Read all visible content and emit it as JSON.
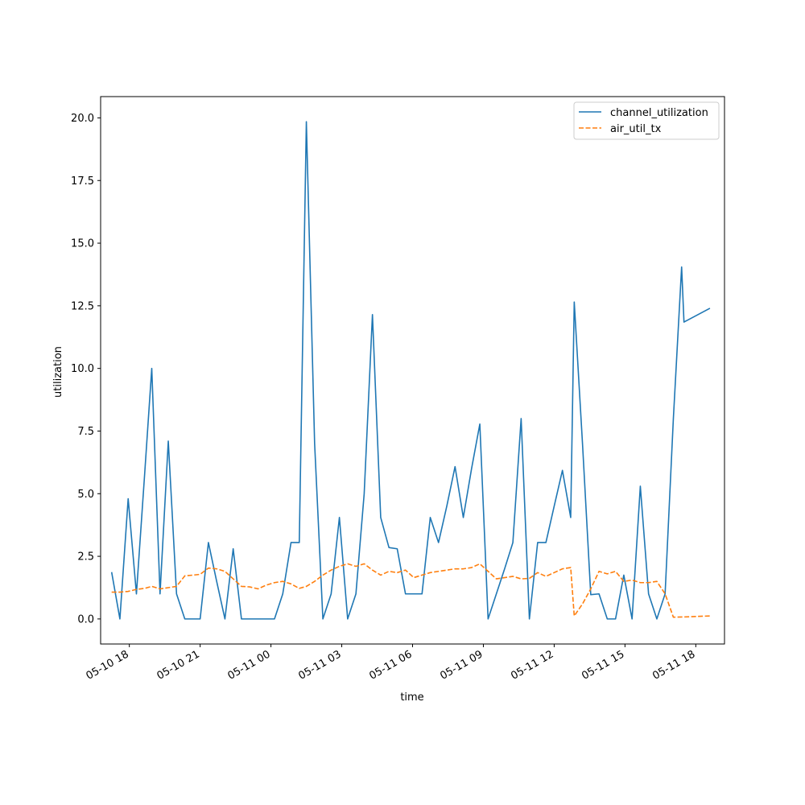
{
  "chart_data": {
    "type": "line",
    "title": "",
    "xlabel": "time",
    "ylabel": "utilization",
    "x_range": [
      "2024-05-10T16:47",
      "2024-05-11T19:13"
    ],
    "ylim": [
      -1.0,
      20.85
    ],
    "y_ticks": [
      0.0,
      2.5,
      5.0,
      7.5,
      10.0,
      12.5,
      15.0,
      17.5,
      20.0
    ],
    "y_tick_labels": [
      "0.0",
      "2.5",
      "5.0",
      "7.5",
      "10.0",
      "12.5",
      "15.0",
      "17.5",
      "20.0"
    ],
    "x_ticks": [
      "2024-05-10T18:00",
      "2024-05-10T21:00",
      "2024-05-11T00:00",
      "2024-05-11T03:00",
      "2024-05-11T06:00",
      "2024-05-11T09:00",
      "2024-05-11T12:00",
      "2024-05-11T15:00",
      "2024-05-11T18:00"
    ],
    "x_tick_labels": [
      "05-10 18",
      "05-10 21",
      "05-11 00",
      "05-11 03",
      "05-11 06",
      "05-11 09",
      "05-11 12",
      "05-11 15",
      "05-11 18"
    ],
    "grid": false,
    "legend": "top-right",
    "series": [
      {
        "name": "channel_utilization",
        "color": "#1f77b4",
        "style": "solid",
        "points": [
          [
            "2024-05-10T17:15",
            1.87
          ],
          [
            "2024-05-10T17:36",
            0.0
          ],
          [
            "2024-05-10T17:57",
            4.8
          ],
          [
            "2024-05-10T18:18",
            1.0
          ],
          [
            "2024-05-10T18:39",
            5.8
          ],
          [
            "2024-05-10T18:57",
            10.0
          ],
          [
            "2024-05-10T19:18",
            1.0
          ],
          [
            "2024-05-10T19:39",
            7.1
          ],
          [
            "2024-05-10T20:00",
            1.0
          ],
          [
            "2024-05-10T20:21",
            0.0
          ],
          [
            "2024-05-10T20:42",
            0.0
          ],
          [
            "2024-05-10T21:00",
            0.0
          ],
          [
            "2024-05-10T21:21",
            3.05
          ],
          [
            "2024-05-10T21:42",
            1.5
          ],
          [
            "2024-05-10T22:03",
            0.0
          ],
          [
            "2024-05-10T22:24",
            2.8
          ],
          [
            "2024-05-10T22:45",
            0.0
          ],
          [
            "2024-05-10T23:06",
            0.0
          ],
          [
            "2024-05-10T23:27",
            0.0
          ],
          [
            "2024-05-10T23:48",
            0.0
          ],
          [
            "2024-05-11T00:09",
            0.0
          ],
          [
            "2024-05-11T00:30",
            1.0
          ],
          [
            "2024-05-11T00:51",
            3.05
          ],
          [
            "2024-05-11T01:12",
            3.05
          ],
          [
            "2024-05-11T01:30",
            19.85
          ],
          [
            "2024-05-11T01:51",
            7.0
          ],
          [
            "2024-05-11T02:12",
            0.0
          ],
          [
            "2024-05-11T02:33",
            1.0
          ],
          [
            "2024-05-11T02:54",
            4.05
          ],
          [
            "2024-05-11T03:15",
            0.0
          ],
          [
            "2024-05-11T03:36",
            1.0
          ],
          [
            "2024-05-11T03:57",
            5.0
          ],
          [
            "2024-05-11T04:18",
            12.15
          ],
          [
            "2024-05-11T04:39",
            4.05
          ],
          [
            "2024-05-11T05:00",
            2.85
          ],
          [
            "2024-05-11T05:21",
            2.8
          ],
          [
            "2024-05-11T05:42",
            1.0
          ],
          [
            "2024-05-11T06:03",
            1.0
          ],
          [
            "2024-05-11T06:24",
            1.0
          ],
          [
            "2024-05-11T06:45",
            4.05
          ],
          [
            "2024-05-11T07:06",
            3.05
          ],
          [
            "2024-05-11T07:27",
            4.5
          ],
          [
            "2024-05-11T07:48",
            6.08
          ],
          [
            "2024-05-11T08:09",
            4.05
          ],
          [
            "2024-05-11T08:30",
            6.0
          ],
          [
            "2024-05-11T08:51",
            7.78
          ],
          [
            "2024-05-11T09:12",
            0.0
          ],
          [
            "2024-05-11T09:33",
            1.0
          ],
          [
            "2024-05-11T09:54",
            2.0
          ],
          [
            "2024-05-11T10:15",
            3.05
          ],
          [
            "2024-05-11T10:36",
            8.0
          ],
          [
            "2024-05-11T10:57",
            0.0
          ],
          [
            "2024-05-11T11:18",
            3.05
          ],
          [
            "2024-05-11T11:39",
            3.05
          ],
          [
            "2024-05-11T12:00",
            4.5
          ],
          [
            "2024-05-11T12:21",
            5.93
          ],
          [
            "2024-05-11T12:42",
            4.05
          ],
          [
            "2024-05-11T12:51",
            12.65
          ],
          [
            "2024-05-11T13:12",
            7.0
          ],
          [
            "2024-05-11T13:33",
            0.97
          ],
          [
            "2024-05-11T13:54",
            1.0
          ],
          [
            "2024-05-11T14:15",
            0.0
          ],
          [
            "2024-05-11T14:36",
            0.0
          ],
          [
            "2024-05-11T14:57",
            1.75
          ],
          [
            "2024-05-11T15:18",
            0.0
          ],
          [
            "2024-05-11T15:39",
            5.3
          ],
          [
            "2024-05-11T16:00",
            1.0
          ],
          [
            "2024-05-11T16:21",
            0.0
          ],
          [
            "2024-05-11T16:42",
            1.0
          ],
          [
            "2024-05-11T17:03",
            8.0
          ],
          [
            "2024-05-11T17:24",
            14.05
          ],
          [
            "2024-05-11T17:30",
            11.85
          ],
          [
            "2024-05-11T18:36",
            12.4
          ]
        ]
      },
      {
        "name": "air_util_tx",
        "color": "#ff7f0e",
        "style": "dashed",
        "points": [
          [
            "2024-05-10T17:15",
            1.07
          ],
          [
            "2024-05-10T17:36",
            1.07
          ],
          [
            "2024-05-10T17:57",
            1.1
          ],
          [
            "2024-05-10T18:18",
            1.18
          ],
          [
            "2024-05-10T18:39",
            1.22
          ],
          [
            "2024-05-10T18:57",
            1.3
          ],
          [
            "2024-05-10T19:18",
            1.2
          ],
          [
            "2024-05-10T19:39",
            1.25
          ],
          [
            "2024-05-10T20:00",
            1.3
          ],
          [
            "2024-05-10T20:21",
            1.72
          ],
          [
            "2024-05-10T20:42",
            1.75
          ],
          [
            "2024-05-10T21:00",
            1.78
          ],
          [
            "2024-05-10T21:21",
            2.03
          ],
          [
            "2024-05-10T21:42",
            2.0
          ],
          [
            "2024-05-10T22:03",
            1.9
          ],
          [
            "2024-05-10T22:24",
            1.6
          ],
          [
            "2024-05-10T22:45",
            1.3
          ],
          [
            "2024-05-10T23:06",
            1.28
          ],
          [
            "2024-05-10T23:27",
            1.2
          ],
          [
            "2024-05-10T23:48",
            1.35
          ],
          [
            "2024-05-11T00:09",
            1.45
          ],
          [
            "2024-05-11T00:30",
            1.5
          ],
          [
            "2024-05-11T00:51",
            1.4
          ],
          [
            "2024-05-11T01:12",
            1.22
          ],
          [
            "2024-05-11T01:30",
            1.3
          ],
          [
            "2024-05-11T01:51",
            1.5
          ],
          [
            "2024-05-11T02:12",
            1.75
          ],
          [
            "2024-05-11T02:33",
            1.95
          ],
          [
            "2024-05-11T02:54",
            2.1
          ],
          [
            "2024-05-11T03:15",
            2.2
          ],
          [
            "2024-05-11T03:36",
            2.1
          ],
          [
            "2024-05-11T03:57",
            2.2
          ],
          [
            "2024-05-11T04:18",
            1.95
          ],
          [
            "2024-05-11T04:39",
            1.75
          ],
          [
            "2024-05-11T05:00",
            1.9
          ],
          [
            "2024-05-11T05:21",
            1.85
          ],
          [
            "2024-05-11T05:42",
            1.95
          ],
          [
            "2024-05-11T06:03",
            1.65
          ],
          [
            "2024-05-11T06:24",
            1.75
          ],
          [
            "2024-05-11T06:45",
            1.85
          ],
          [
            "2024-05-11T07:06",
            1.9
          ],
          [
            "2024-05-11T07:27",
            1.95
          ],
          [
            "2024-05-11T07:48",
            2.0
          ],
          [
            "2024-05-11T08:09",
            2.0
          ],
          [
            "2024-05-11T08:30",
            2.05
          ],
          [
            "2024-05-11T08:51",
            2.2
          ],
          [
            "2024-05-11T09:12",
            1.9
          ],
          [
            "2024-05-11T09:33",
            1.6
          ],
          [
            "2024-05-11T09:54",
            1.65
          ],
          [
            "2024-05-11T10:15",
            1.7
          ],
          [
            "2024-05-11T10:36",
            1.6
          ],
          [
            "2024-05-11T10:57",
            1.62
          ],
          [
            "2024-05-11T11:18",
            1.85
          ],
          [
            "2024-05-11T11:39",
            1.7
          ],
          [
            "2024-05-11T12:00",
            1.85
          ],
          [
            "2024-05-11T12:21",
            2.0
          ],
          [
            "2024-05-11T12:42",
            2.05
          ],
          [
            "2024-05-11T12:51",
            0.12
          ],
          [
            "2024-05-11T13:12",
            0.6
          ],
          [
            "2024-05-11T13:33",
            1.2
          ],
          [
            "2024-05-11T13:54",
            1.9
          ],
          [
            "2024-05-11T14:15",
            1.8
          ],
          [
            "2024-05-11T14:36",
            1.9
          ],
          [
            "2024-05-11T14:57",
            1.5
          ],
          [
            "2024-05-11T15:18",
            1.55
          ],
          [
            "2024-05-11T15:39",
            1.45
          ],
          [
            "2024-05-11T16:00",
            1.45
          ],
          [
            "2024-05-11T16:21",
            1.5
          ],
          [
            "2024-05-11T16:42",
            1.0
          ],
          [
            "2024-05-11T17:03",
            0.07
          ],
          [
            "2024-05-11T17:24",
            0.08
          ],
          [
            "2024-05-11T17:30",
            0.08
          ],
          [
            "2024-05-11T18:36",
            0.12
          ]
        ]
      }
    ]
  }
}
